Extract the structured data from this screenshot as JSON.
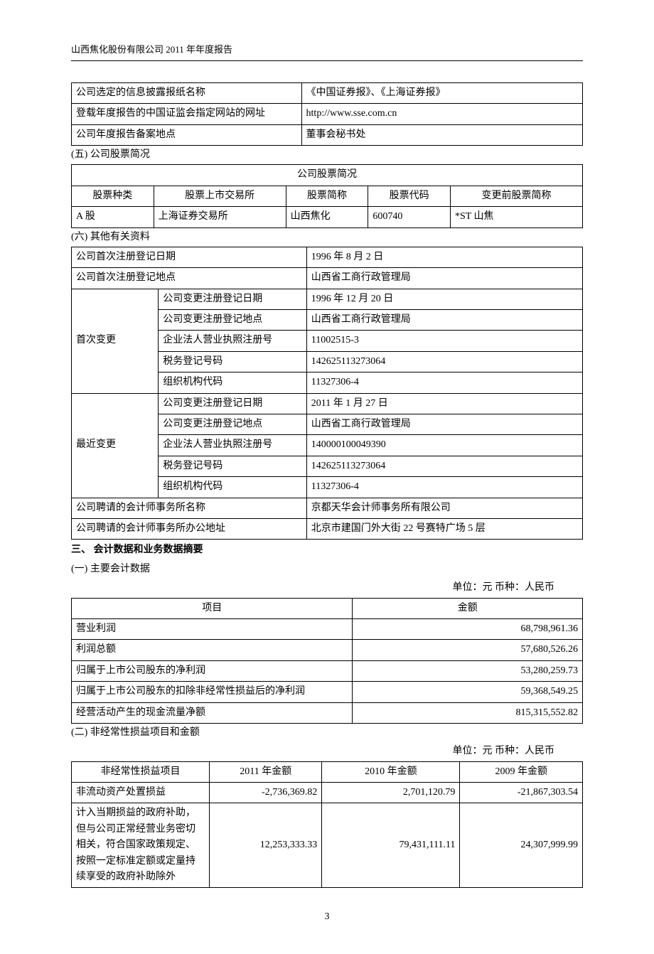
{
  "header": {
    "company_report": "山西焦化股份有限公司 2011 年年度报告"
  },
  "table1": {
    "rows": [
      {
        "label": "公司选定的信息披露报纸名称",
        "value": "《中国证券报》、《上海证券报》"
      },
      {
        "label": "登载年度报告的中国证监会指定网站的网址",
        "value": "http://www.sse.com.cn"
      },
      {
        "label": "公司年度报告备案地点",
        "value": "董事会秘书处"
      }
    ]
  },
  "section5": {
    "label": "(五) 公司股票简况"
  },
  "stock_table": {
    "title": "公司股票简况",
    "headers": [
      "股票种类",
      "股票上市交易所",
      "股票简称",
      "股票代码",
      "变更前股票简称"
    ],
    "row": [
      "A 股",
      "上海证券交易所",
      "山西焦化",
      "600740",
      "*ST 山焦"
    ]
  },
  "section6": {
    "label": "(六) 其他有关资料"
  },
  "info_table": {
    "rows_top": [
      {
        "label": "公司首次注册登记日期",
        "value": "1996 年 8 月 2 日"
      },
      {
        "label": "公司首次注册登记地点",
        "value": "山西省工商行政管理局"
      }
    ],
    "first_change": {
      "label": "首次变更",
      "rows": [
        {
          "label": "公司变更注册登记日期",
          "value": "1996 年 12 月 20 日"
        },
        {
          "label": "公司变更注册登记地点",
          "value": "山西省工商行政管理局"
        },
        {
          "label": "企业法人营业执照注册号",
          "value": "11002515-3"
        },
        {
          "label": "税务登记号码",
          "value": "142625113273064"
        },
        {
          "label": "组织机构代码",
          "value": "11327306-4"
        }
      ]
    },
    "recent_change": {
      "label": "最近变更",
      "rows": [
        {
          "label": "公司变更注册登记日期",
          "value": "2011 年 1 月 27 日"
        },
        {
          "label": "公司变更注册登记地点",
          "value": "山西省工商行政管理局"
        },
        {
          "label": "企业法人营业执照注册号",
          "value": "140000100049390"
        },
        {
          "label": "税务登记号码",
          "value": "142625113273064"
        },
        {
          "label": "组织机构代码",
          "value": "11327306-4"
        }
      ]
    },
    "rows_bottom": [
      {
        "label": "公司聘请的会计师事务所名称",
        "value": "京都天华会计师事务所有限公司"
      },
      {
        "label": "公司聘请的会计师事务所办公地址",
        "value": "北京市建国门外大街 22 号赛特广场 5 层"
      }
    ]
  },
  "section3": {
    "label": "三、 会计数据和业务数据摘要"
  },
  "sub1": {
    "label": "(一) 主要会计数据",
    "unit": "单位：元  币种：人民币"
  },
  "finance_table": {
    "headers": [
      "项目",
      "金额"
    ],
    "rows": [
      {
        "label": "营业利润",
        "value": "68,798,961.36"
      },
      {
        "label": "利润总额",
        "value": "57,680,526.26"
      },
      {
        "label": "归属于上市公司股东的净利润",
        "value": "53,280,259.73"
      },
      {
        "label": "归属于上市公司股东的扣除非经常性损益后的净利润",
        "value": "59,368,549.25"
      },
      {
        "label": "经营活动产生的现金流量净额",
        "value": "815,315,552.82"
      }
    ]
  },
  "sub2": {
    "label": "(二) 非经常性损益项目和金额",
    "unit": "单位：元  币种：人民币"
  },
  "nonrecurring_table": {
    "headers": [
      "非经常性损益项目",
      "2011 年金额",
      "2010 年金额",
      "2009 年金额"
    ],
    "rows": [
      {
        "label": "非流动资产处置损益",
        "v2011": "-2,736,369.82",
        "v2010": "2,701,120.79",
        "v2009": "-21,867,303.54"
      },
      {
        "label": "计入当期损益的政府补助，但与公司正常经营业务密切相关，符合国家政策规定、按照一定标准定额或定量持续享受的政府补助除外",
        "v2011": "12,253,333.33",
        "v2010": "79,431,111.11",
        "v2009": "24,307,999.99"
      }
    ]
  },
  "page_number": "3"
}
